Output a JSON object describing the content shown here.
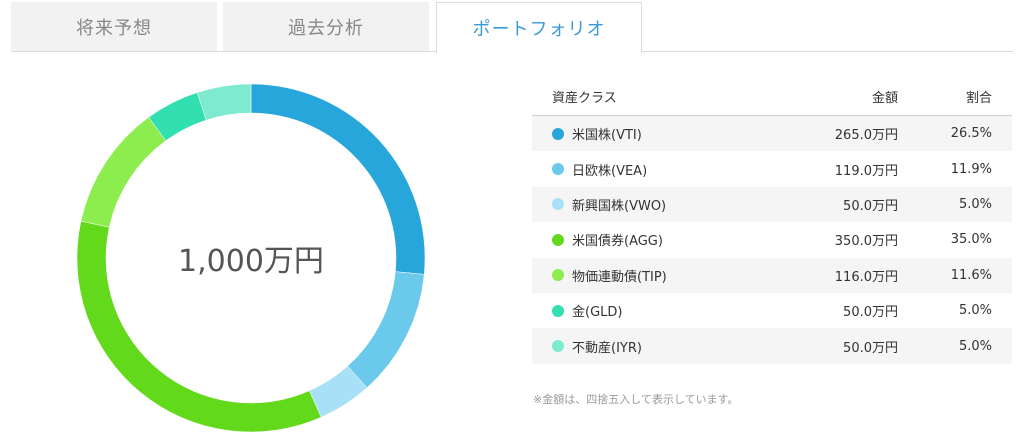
{
  "tabs": [
    {
      "label": "将来予想",
      "active": false
    },
    {
      "label": "過去分析",
      "active": false
    },
    {
      "label": "ポートフォリオ",
      "active": true
    }
  ],
  "donut": {
    "center_label": "1,000万円"
  },
  "table": {
    "headers": {
      "name": "資産クラス",
      "amount": "金額",
      "ratio": "割合"
    },
    "rows": [
      {
        "name": "米国株(VTI)",
        "amount": "265.0万円",
        "ratio": "26.5%",
        "value": 26.5,
        "color": "#27a6dc"
      },
      {
        "name": "日欧株(VEA)",
        "amount": "119.0万円",
        "ratio": "11.9%",
        "value": 11.9,
        "color": "#6bc9ec"
      },
      {
        "name": "新興国株(VWO)",
        "amount": "50.0万円",
        "ratio": "5.0%",
        "value": 5.0,
        "color": "#a8e0f8"
      },
      {
        "name": "米国債券(AGG)",
        "amount": "350.0万円",
        "ratio": "35.0%",
        "value": 35.0,
        "color": "#62d91b"
      },
      {
        "name": "物価連動債(TIP)",
        "amount": "116.0万円",
        "ratio": "11.6%",
        "value": 11.6,
        "color": "#8ded4f"
      },
      {
        "name": "金(GLD)",
        "amount": "50.0万円",
        "ratio": "5.0%",
        "value": 5.0,
        "color": "#32dfb0"
      },
      {
        "name": "不動産(IYR)",
        "amount": "50.0万円",
        "ratio": "5.0%",
        "value": 5.0,
        "color": "#7eebd0"
      }
    ]
  },
  "footnote": "※金額は、四捨五入して表示しています。"
}
